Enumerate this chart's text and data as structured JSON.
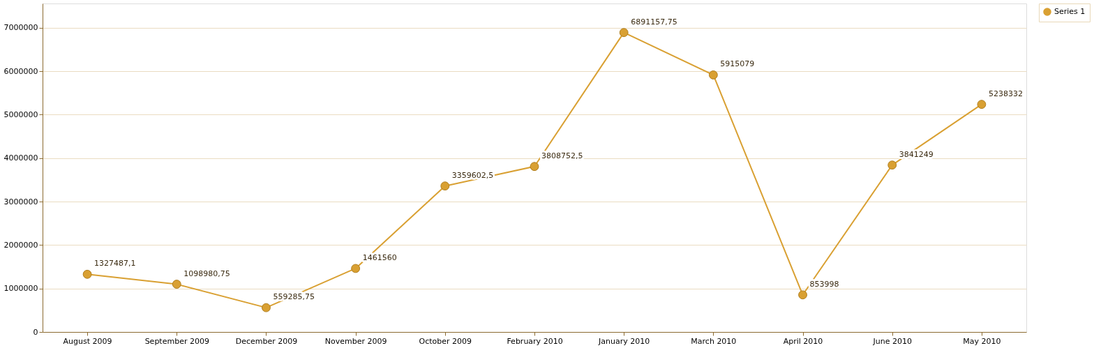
{
  "chart_data": {
    "type": "line",
    "categories": [
      "August 2009",
      "September 2009",
      "December 2009",
      "November 2009",
      "October 2009",
      "February 2010",
      "January 2010",
      "March 2010",
      "April 2010",
      "June 2010",
      "May 2010"
    ],
    "series": [
      {
        "name": "Series 1",
        "color": "#d9a032",
        "values": [
          1327487.1,
          1098980.75,
          559285.75,
          1461560,
          3359602.5,
          3808752.5,
          6891157.75,
          5915079,
          853998,
          3841249,
          5238332
        ],
        "value_labels": [
          "1327487,1",
          "1098980,75",
          "559285,75",
          "1461560",
          "3359602,5",
          "3808752,5",
          "6891157,75",
          "5915079",
          "853998",
          "3841249",
          "5238332"
        ]
      }
    ],
    "ylim": [
      0,
      7560000
    ],
    "yticks": [
      0,
      1000000,
      2000000,
      3000000,
      4000000,
      5000000,
      6000000,
      7000000
    ],
    "grid": "y",
    "legend": "top right",
    "marker": "circle",
    "line_style": "solid"
  }
}
